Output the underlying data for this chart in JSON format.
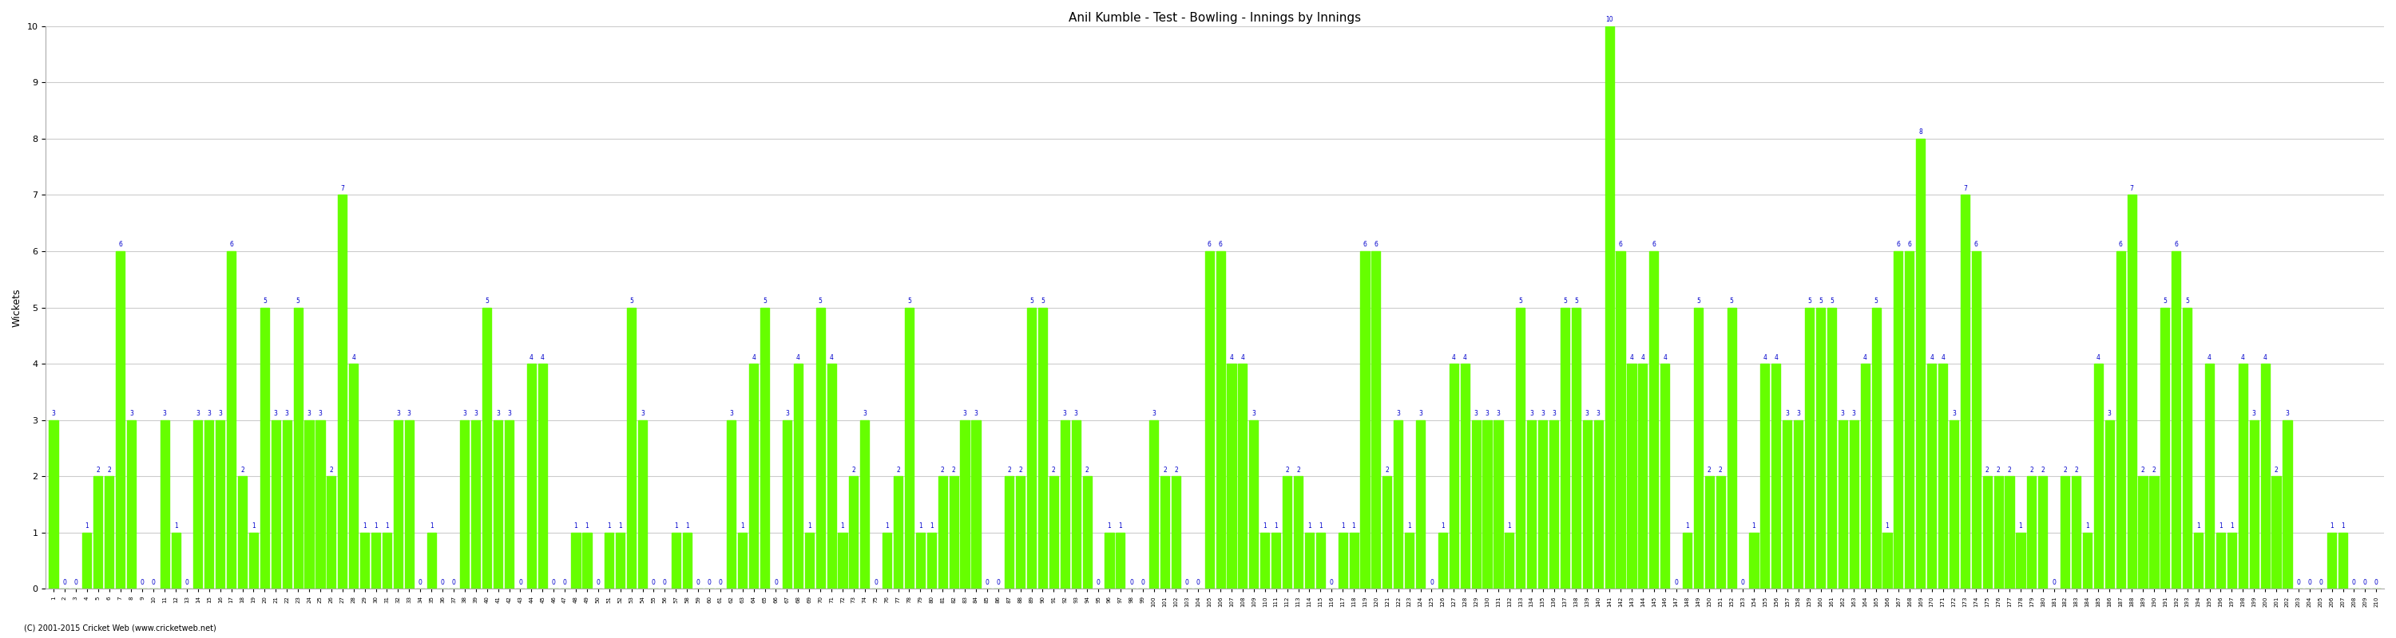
{
  "title": "Anil Kumble - Test - Bowling - Innings by Innings",
  "ylabel": "Wickets",
  "bar_color": "#66ff00",
  "label_color": "#0000cc",
  "background_color": "#ffffff",
  "grid_color": "#cccccc",
  "ylim": [
    0,
    10
  ],
  "yticks": [
    0,
    1,
    2,
    3,
    4,
    5,
    6,
    7,
    8,
    9,
    10
  ],
  "footnote": "(C) 2001-2015 Cricket Web (www.cricketweb.net)",
  "wickets": [
    3,
    0,
    0,
    1,
    2,
    2,
    6,
    3,
    0,
    0,
    3,
    1,
    0,
    3,
    3,
    3,
    6,
    2,
    1,
    5,
    3,
    3,
    5,
    3,
    3,
    2,
    7,
    4,
    1,
    1,
    1,
    3,
    3,
    0,
    1,
    0,
    0,
    3,
    3,
    5,
    3,
    3,
    0,
    4,
    4,
    0,
    0,
    1,
    1,
    0,
    1,
    1,
    5,
    3,
    0,
    0,
    1,
    1,
    0,
    0,
    0,
    3,
    1,
    4,
    5,
    0,
    3,
    4,
    1,
    5,
    4,
    1,
    2,
    3,
    0,
    1,
    2,
    5,
    1,
    1,
    2,
    2,
    3,
    3,
    0,
    0,
    2,
    2,
    5,
    5,
    2,
    3,
    3,
    2,
    0,
    1,
    1,
    0,
    0,
    3,
    2,
    2,
    0,
    0,
    6,
    6,
    4,
    4,
    3,
    1,
    1,
    2,
    2,
    1,
    1,
    0,
    1,
    1,
    6,
    6,
    2,
    3,
    1,
    3,
    0,
    1,
    4,
    4,
    3,
    3,
    3,
    1,
    5,
    3,
    3,
    3,
    5,
    5,
    3,
    3,
    10,
    6,
    4,
    4,
    6,
    4,
    0,
    1,
    5,
    2,
    2,
    5,
    0,
    1,
    4,
    4,
    3,
    3,
    5,
    5,
    5,
    3,
    3,
    4,
    5,
    1,
    6,
    6,
    8,
    4,
    4,
    3,
    7,
    6,
    2,
    2,
    2,
    1,
    2,
    2,
    0,
    2,
    2,
    1,
    4,
    3,
    6,
    7,
    2,
    2,
    5,
    6,
    5,
    1,
    4,
    1,
    1,
    4,
    3,
    4,
    2,
    3,
    0,
    0,
    0,
    1,
    1,
    0,
    0,
    0
  ],
  "innings": [
    1,
    2,
    3,
    4,
    5,
    6,
    7,
    8,
    9,
    10,
    11,
    12,
    13,
    14,
    15,
    16,
    17,
    18,
    19,
    20,
    21,
    22,
    23,
    24,
    25,
    26,
    27,
    28,
    29,
    30,
    31,
    32,
    33,
    34,
    35,
    36,
    37,
    38,
    39,
    40,
    41,
    42,
    43,
    44,
    45,
    46,
    47,
    48,
    49,
    50,
    51,
    52,
    53,
    54,
    55,
    56,
    57,
    58,
    59,
    60,
    61,
    62,
    63,
    64,
    65,
    66,
    67,
    68,
    69,
    70,
    71,
    72,
    73,
    74,
    75,
    76,
    77,
    78,
    79,
    80,
    81,
    82,
    83,
    84,
    85,
    86,
    87,
    88,
    89,
    90,
    91,
    92,
    93,
    94,
    95,
    96,
    97,
    98,
    99,
    100,
    101,
    102,
    103,
    104,
    105,
    106,
    107,
    108,
    109,
    110,
    111,
    112,
    113,
    114,
    115,
    116,
    117,
    118,
    119,
    120,
    121,
    122,
    123,
    124,
    125,
    126,
    127,
    128,
    129,
    130,
    131,
    132,
    133,
    134,
    135,
    136,
    137,
    138,
    139,
    140,
    141,
    142,
    143,
    144,
    145,
    146,
    147,
    148,
    149,
    150,
    151,
    152,
    153,
    154,
    155,
    156,
    157,
    158,
    159,
    160,
    161,
    162,
    163,
    164,
    165,
    166,
    167,
    168,
    169,
    170,
    171,
    172,
    173,
    174,
    175,
    176,
    177,
    178,
    179,
    180,
    181,
    182,
    183,
    184,
    185,
    186,
    187,
    188,
    189,
    190,
    191,
    192,
    193,
    194,
    195,
    196,
    197,
    198,
    199,
    200,
    201,
    202,
    203,
    204,
    205,
    206,
    207,
    208,
    209,
    210
  ]
}
